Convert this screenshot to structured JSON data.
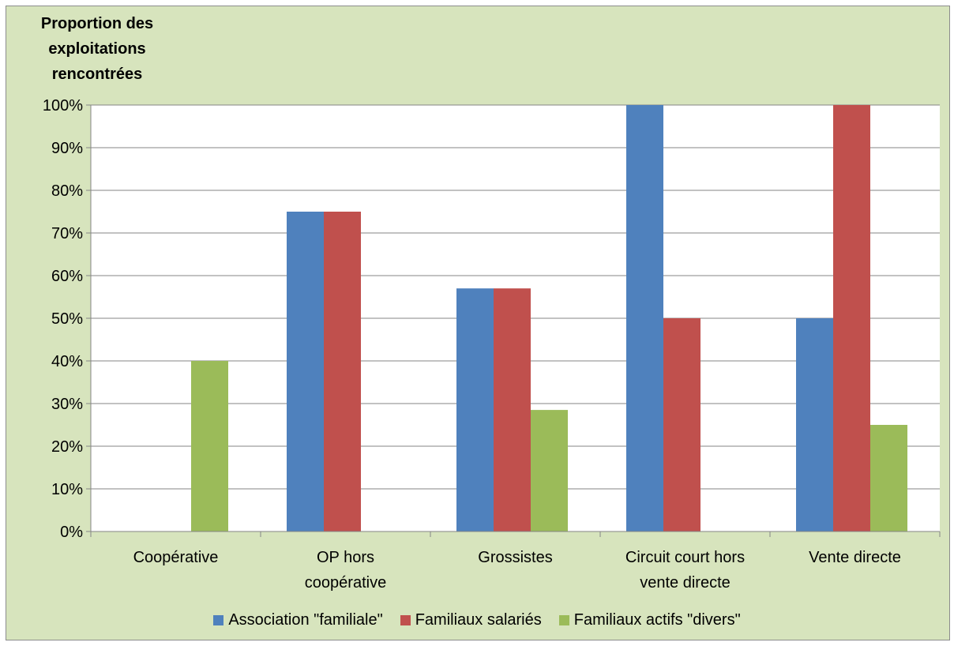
{
  "chart_data": {
    "type": "bar",
    "ylabel": "Proportion des exploitations rencontrées",
    "categories": [
      "Coopérative",
      "OP hors coopérative",
      "Grossistes",
      "Circuit court hors vente directe",
      "Vente directe"
    ],
    "category_label_lines": [
      [
        "Coopérative"
      ],
      [
        "OP hors",
        "coopérative"
      ],
      [
        "Grossistes"
      ],
      [
        "Circuit court hors",
        "vente directe"
      ],
      [
        "Vente directe"
      ]
    ],
    "series": [
      {
        "name": "Association \"familiale\"",
        "color": "#4f81bd",
        "values": [
          0,
          75,
          57,
          100,
          50
        ]
      },
      {
        "name": "Familiaux salariés",
        "color": "#c0504d",
        "values": [
          0,
          75,
          57,
          50,
          100
        ]
      },
      {
        "name": "Familiaux actifs \"divers\"",
        "color": "#9bbb59",
        "values": [
          40,
          0,
          28.5,
          0,
          25
        ]
      }
    ],
    "ylim": [
      0,
      100
    ],
    "yticks": [
      "0%",
      "10%",
      "20%",
      "30%",
      "40%",
      "50%",
      "60%",
      "70%",
      "80%",
      "90%",
      "100%"
    ],
    "grid": true,
    "legend_position": "bottom"
  }
}
